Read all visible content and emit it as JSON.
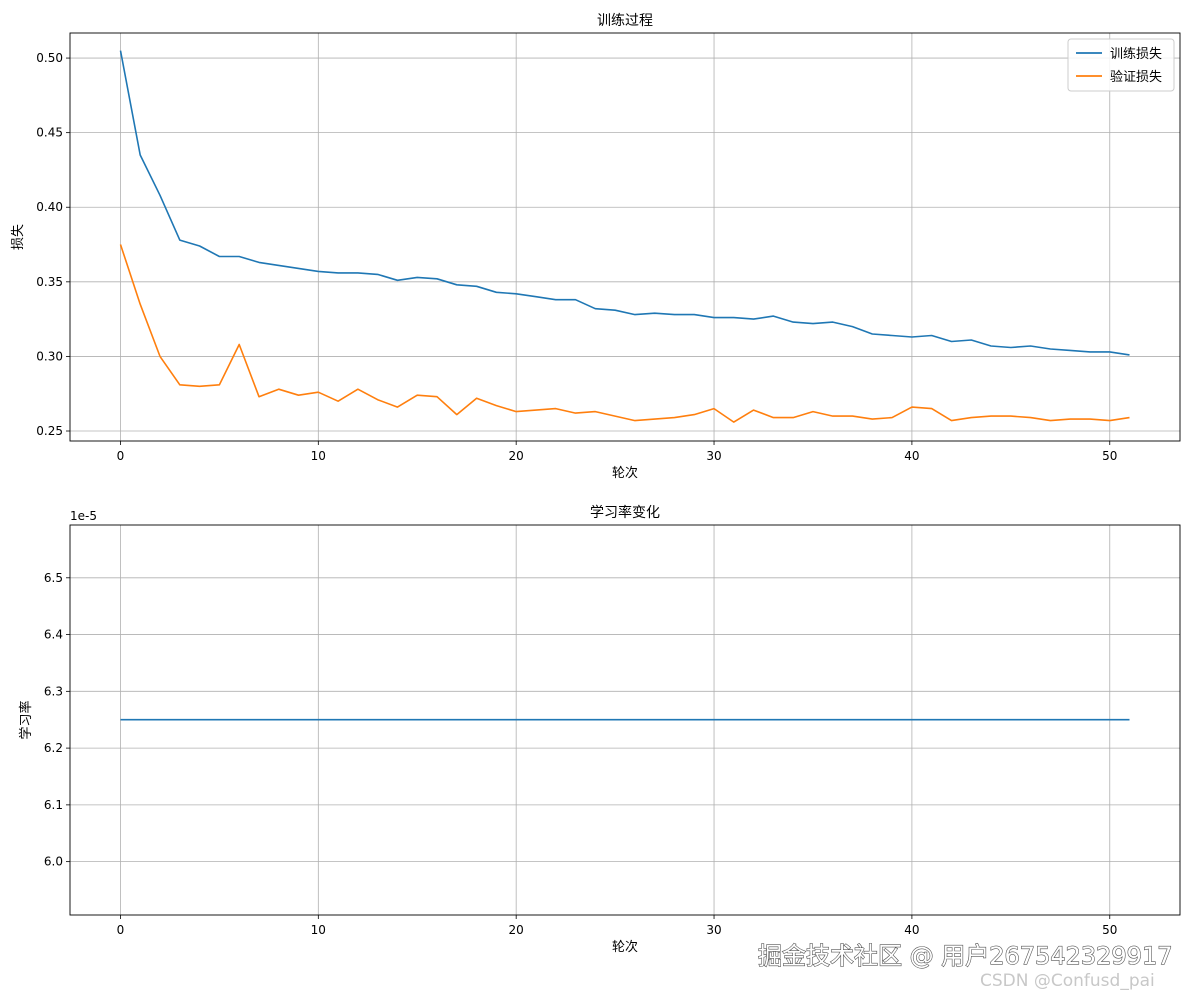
{
  "chart_data": [
    {
      "type": "line",
      "title": "训练过程",
      "xlabel": "轮次",
      "ylabel": "损失",
      "xlim": [
        -2.55,
        53.55
      ],
      "ylim": [
        0.2433,
        0.5168
      ],
      "xticks": [
        0,
        10,
        20,
        30,
        40,
        50
      ],
      "yticks": [
        0.25,
        0.3,
        0.35,
        0.4,
        0.45,
        0.5
      ],
      "grid": true,
      "legend": "top-right",
      "x": [
        0,
        1,
        2,
        3,
        4,
        5,
        6,
        7,
        8,
        9,
        10,
        11,
        12,
        13,
        14,
        15,
        16,
        17,
        18,
        19,
        20,
        21,
        22,
        23,
        24,
        25,
        26,
        27,
        28,
        29,
        30,
        31,
        32,
        33,
        34,
        35,
        36,
        37,
        38,
        39,
        40,
        41,
        42,
        43,
        44,
        45,
        46,
        47,
        48,
        49,
        50,
        51
      ],
      "series": [
        {
          "name": "训练损失",
          "color": "#1f77b4",
          "values": [
            0.505,
            0.435,
            0.408,
            0.378,
            0.374,
            0.367,
            0.367,
            0.363,
            0.361,
            0.359,
            0.357,
            0.356,
            0.356,
            0.355,
            0.351,
            0.353,
            0.352,
            0.348,
            0.347,
            0.343,
            0.342,
            0.34,
            0.338,
            0.338,
            0.332,
            0.331,
            0.328,
            0.329,
            0.328,
            0.328,
            0.326,
            0.326,
            0.325,
            0.327,
            0.323,
            0.322,
            0.323,
            0.32,
            0.315,
            0.314,
            0.313,
            0.314,
            0.31,
            0.311,
            0.307,
            0.306,
            0.307,
            0.305,
            0.304,
            0.303,
            0.303,
            0.301
          ]
        },
        {
          "name": "验证损失",
          "color": "#ff7f0e",
          "values": [
            0.375,
            0.335,
            0.3,
            0.281,
            0.28,
            0.281,
            0.308,
            0.273,
            0.278,
            0.274,
            0.276,
            0.27,
            0.278,
            0.271,
            0.266,
            0.274,
            0.273,
            0.261,
            0.272,
            0.267,
            0.263,
            0.264,
            0.265,
            0.262,
            0.263,
            0.26,
            0.257,
            0.258,
            0.259,
            0.261,
            0.265,
            0.256,
            0.264,
            0.259,
            0.259,
            0.263,
            0.26,
            0.26,
            0.258,
            0.259,
            0.266,
            0.265,
            0.257,
            0.259,
            0.26,
            0.26,
            0.259,
            0.257,
            0.258,
            0.258,
            0.257,
            0.259
          ]
        }
      ]
    },
    {
      "type": "line",
      "title": "学习率变化",
      "xlabel": "轮次",
      "ylabel": "学习率",
      "offset_label": "1e-5",
      "xlim": [
        -2.55,
        53.55
      ],
      "ylim": [
        5.906,
        6.593
      ],
      "xticks": [
        0,
        10,
        20,
        30,
        40,
        50
      ],
      "yticks": [
        6.0,
        6.1,
        6.2,
        6.3,
        6.4,
        6.5
      ],
      "grid": true,
      "x": [
        0,
        1,
        2,
        3,
        4,
        5,
        6,
        7,
        8,
        9,
        10,
        11,
        12,
        13,
        14,
        15,
        16,
        17,
        18,
        19,
        20,
        21,
        22,
        23,
        24,
        25,
        26,
        27,
        28,
        29,
        30,
        31,
        32,
        33,
        34,
        35,
        36,
        37,
        38,
        39,
        40,
        41,
        42,
        43,
        44,
        45,
        46,
        47,
        48,
        49,
        50,
        51
      ],
      "series": [
        {
          "color": "#1f77b4",
          "values": [
            6.25,
            6.25,
            6.25,
            6.25,
            6.25,
            6.25,
            6.25,
            6.25,
            6.25,
            6.25,
            6.25,
            6.25,
            6.25,
            6.25,
            6.25,
            6.25,
            6.25,
            6.25,
            6.25,
            6.25,
            6.25,
            6.25,
            6.25,
            6.25,
            6.25,
            6.25,
            6.25,
            6.25,
            6.25,
            6.25,
            6.25,
            6.25,
            6.25,
            6.25,
            6.25,
            6.25,
            6.25,
            6.25,
            6.25,
            6.25,
            6.25,
            6.25,
            6.25,
            6.25,
            6.25,
            6.25,
            6.25,
            6.25,
            6.25,
            6.25,
            6.25,
            6.25
          ]
        }
      ]
    }
  ],
  "watermark": {
    "line1": "掘金技术社区 @ 用户267542329917",
    "line2": "CSDN @Confusd_pai"
  }
}
